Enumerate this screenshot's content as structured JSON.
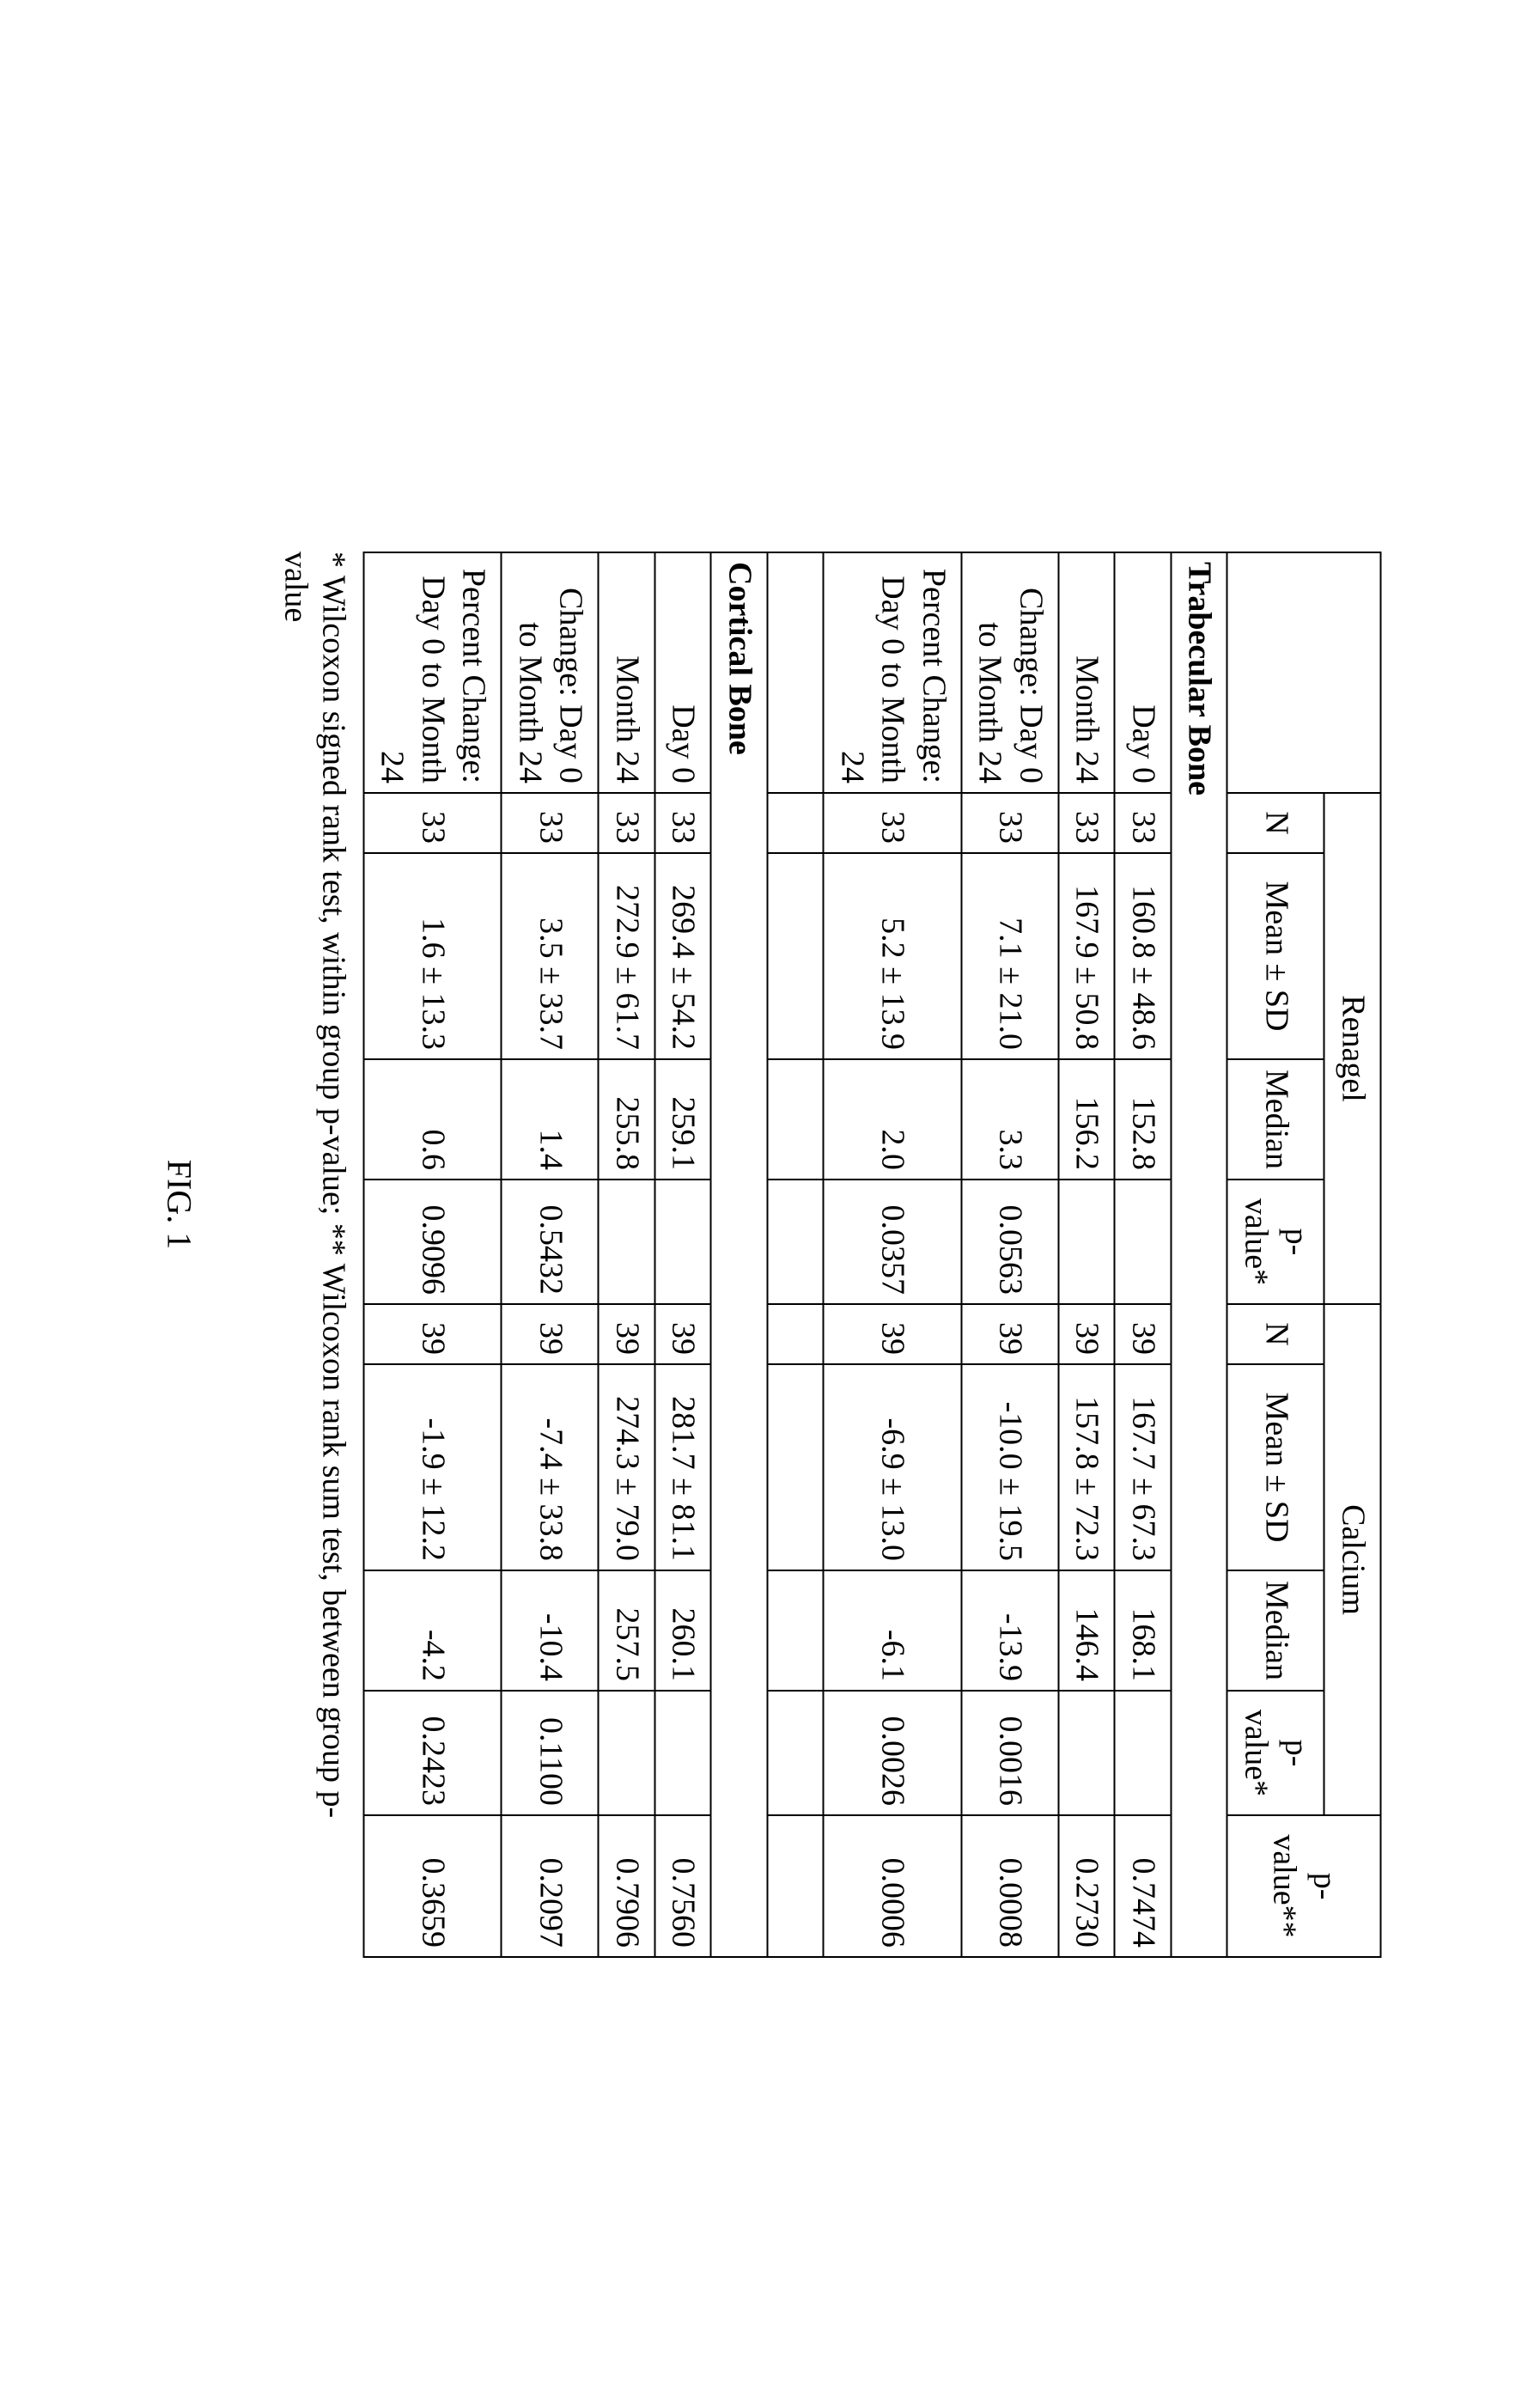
{
  "figure_label": "FIG. 1",
  "footnote": "* Wilcoxon signed rank test, within group p-value; ** Wilcoxon rank sum test, between group p-value",
  "columns": {
    "row_label": "",
    "group_a": "Renagel",
    "group_b": "Calcium",
    "n": "N",
    "mean_sd": "Mean ± SD",
    "median": "Median",
    "median_b": "Median",
    "p_within": "p-value*",
    "p_between": "p-value**"
  },
  "sections": {
    "trabecular": "Trabecular Bone",
    "cortical": "Cortical Bone"
  },
  "row_labels": {
    "day0": "Day 0",
    "month24": "Month 24",
    "change": "Change: Day 0 to Month 24",
    "pct_change": "Percent Change: Day 0 to Month 24"
  },
  "trabecular": {
    "day0": {
      "a_n": "33",
      "a_msd": "160.8 ± 48.6",
      "a_md": "152.8",
      "a_p": "",
      "b_n": "39",
      "b_msd": "167.7 ± 67.3",
      "b_md": "168.1",
      "b_p": "",
      "p_bw": ""
    },
    "month24": {
      "a_n": "33",
      "a_msd": "167.9 ± 50.8",
      "a_md": "156.2",
      "a_p": "",
      "b_n": "39",
      "b_msd": "157.8 ± 72.3",
      "b_md": "146.4",
      "b_p": "",
      "p_bw": "0.2730"
    },
    "day0_pbw": "0.7474",
    "change": {
      "a_n": "33",
      "a_msd": "7.1 ± 21.0",
      "a_md": "3.3",
      "a_p": "0.0563",
      "b_n": "39",
      "b_msd": "-10.0 ± 19.5",
      "b_md": "-13.9",
      "b_p": "0.0016",
      "p_bw": "0.0008"
    },
    "pct_change": {
      "a_n": "33",
      "a_msd": "5.2 ± 13.9",
      "a_md": "2.0",
      "a_p": "0.0357",
      "b_n": "39",
      "b_msd": "-6.9 ± 13.0",
      "b_md": "-6.1",
      "b_p": "0.0026",
      "p_bw": "0.0006"
    }
  },
  "cortical": {
    "day0": {
      "a_n": "33",
      "a_msd": "269.4 ± 54.2",
      "a_md": "259.1",
      "a_p": "",
      "b_n": "39",
      "b_msd": "281.7 ± 81.1",
      "b_md": "260.1",
      "b_p": "",
      "p_bw": ""
    },
    "month24": {
      "a_n": "33",
      "a_msd": "272.9 ± 61.7",
      "a_md": "255.8",
      "a_p": "",
      "b_n": "39",
      "b_msd": "274.3 ± 79.0",
      "b_md": "257.5",
      "b_p": "",
      "p_bw": "0.7906"
    },
    "day0_pbw": "0.7560",
    "change": {
      "a_n": "33",
      "a_msd": "3.5 ± 33.7",
      "a_md": "1.4",
      "a_p": "0.5432",
      "b_n": "39",
      "b_msd": "-7.4 ± 33.8",
      "b_md": "-10.4",
      "b_p": "0.1100",
      "p_bw": "0.2097"
    },
    "pct_change": {
      "a_n": "33",
      "a_msd": "1.6 ± 13.3",
      "a_md": "0.6",
      "a_p": "0.9096",
      "b_n": "39",
      "b_msd": "-1.9 ± 12.2",
      "b_md": "-4.2",
      "b_p": "0.2423",
      "p_bw": "0.3659"
    }
  }
}
